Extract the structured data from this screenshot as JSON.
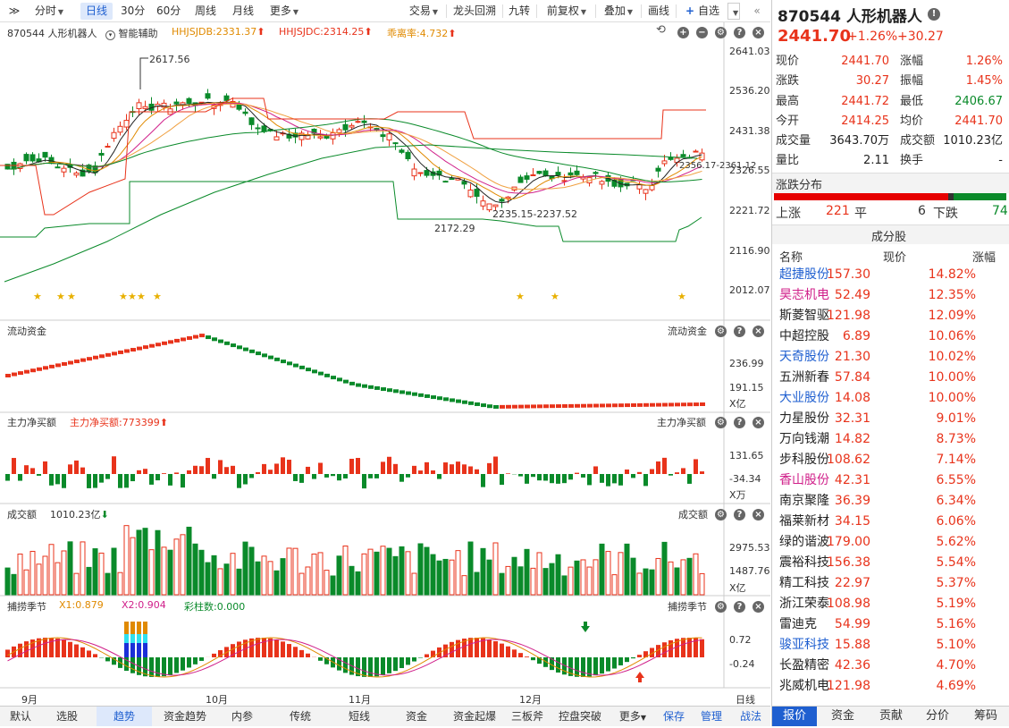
{
  "toolbar": {
    "expand": "≫",
    "items": [
      "分时",
      "日线",
      "30分",
      "60分",
      "周线",
      "月线",
      "更多"
    ],
    "right": [
      "交易",
      "龙头回溯",
      "九转",
      "前复权",
      "叠加",
      "画线",
      "自选"
    ]
  },
  "chart": {
    "title": "870544 人形机器人",
    "assist": "智能辅助",
    "ind1": "HHJSJDB:2331.37",
    "ind2": "HHJSJDC:2314.25",
    "ind3": "乖离率:4.732",
    "price_axis": [
      "2641.03",
      "2536.20",
      "2431.38",
      "2326.55",
      "2221.72",
      "2116.90",
      "2012.07"
    ],
    "ann_high": "2617.56",
    "ann_low": "2172.29",
    "ann_range": "2235.15-2237.52",
    "ann_right": "2356.17-2361.12",
    "flow_title": "流动资金",
    "flow_axis": [
      "236.99",
      "191.15"
    ],
    "flow_unit": "X亿",
    "mf_title": "主力净买额",
    "mf_val": "主力净买额:773399",
    "mf_axis": [
      "131.65",
      "-34.34"
    ],
    "mf_unit": "X万",
    "vol_title": "成交额",
    "vol_val": "1010.23亿",
    "vol_axis": [
      "2975.53",
      "1487.76"
    ],
    "vol_unit": "X亿",
    "cap_title": "捕捞季节",
    "cap_x1": "X1:0.879",
    "cap_x2": "X2:0.904",
    "cap_bar": "彩柱数:0.000",
    "cap_axis": [
      "0.72",
      "-0.24"
    ],
    "months": [
      "9月",
      "10月",
      "11月",
      "12月"
    ],
    "period": "日线"
  },
  "bottom_tabs": [
    "默认",
    "选股",
    "趋势",
    "资金趋势",
    "内参",
    "传统",
    "短线",
    "资金",
    "资金起爆",
    "三板斧",
    "控盘突破",
    "更多",
    "保存",
    "管理",
    "战法"
  ],
  "quote": {
    "name": "870544 人形机器人",
    "price": "2441.70",
    "pct": "+1.26%",
    "chg": "+30.27",
    "rows": [
      [
        "现价",
        "2441.70",
        "涨幅",
        "1.26%"
      ],
      [
        "涨跌",
        "30.27",
        "振幅",
        "1.45%"
      ],
      [
        "最高",
        "2441.72",
        "最低",
        "2406.67"
      ],
      [
        "今开",
        "2414.25",
        "均价",
        "2441.70"
      ],
      [
        "成交量",
        "3643.70万",
        "成交额",
        "1010.23亿"
      ],
      [
        "量比",
        "2.11",
        "换手",
        "-"
      ]
    ],
    "dist_title": "涨跌分布",
    "up_label": "上涨",
    "up": "221",
    "flat_label": "平",
    "flat": "6",
    "down_label": "下跌",
    "down": "74",
    "comp_title": "成分股",
    "headers": [
      "名称",
      "现价",
      "涨幅"
    ],
    "stocks": [
      {
        "n": "超捷股份",
        "p": "157.30",
        "r": "14.82%",
        "c": "#1f5fd0"
      },
      {
        "n": "昊志机电",
        "p": "52.49",
        "r": "12.35%",
        "c": "#d0208a"
      },
      {
        "n": "斯菱智驱",
        "p": "121.98",
        "r": "12.09%",
        "c": "#222"
      },
      {
        "n": "中超控股",
        "p": "6.89",
        "r": "10.06%",
        "c": "#222"
      },
      {
        "n": "天奇股份",
        "p": "21.30",
        "r": "10.02%",
        "c": "#1f5fd0"
      },
      {
        "n": "五洲新春",
        "p": "57.84",
        "r": "10.00%",
        "c": "#222"
      },
      {
        "n": "大业股份",
        "p": "14.08",
        "r": "10.00%",
        "c": "#1f5fd0"
      },
      {
        "n": "力星股份",
        "p": "32.31",
        "r": "9.01%",
        "c": "#222"
      },
      {
        "n": "万向钱潮",
        "p": "14.82",
        "r": "8.73%",
        "c": "#222"
      },
      {
        "n": "步科股份",
        "p": "108.62",
        "r": "7.14%",
        "c": "#222"
      },
      {
        "n": "香山股份",
        "p": "42.31",
        "r": "6.55%",
        "c": "#d0208a"
      },
      {
        "n": "南京聚隆",
        "p": "36.39",
        "r": "6.34%",
        "c": "#222"
      },
      {
        "n": "福莱新材",
        "p": "34.15",
        "r": "6.06%",
        "c": "#222"
      },
      {
        "n": "绿的谐波",
        "p": "179.00",
        "r": "5.62%",
        "c": "#222"
      },
      {
        "n": "震裕科技",
        "p": "156.38",
        "r": "5.54%",
        "c": "#222"
      },
      {
        "n": "精工科技",
        "p": "22.97",
        "r": "5.37%",
        "c": "#222"
      },
      {
        "n": "浙江荣泰",
        "p": "108.98",
        "r": "5.19%",
        "c": "#222"
      },
      {
        "n": "雷迪克",
        "p": "54.99",
        "r": "5.16%",
        "c": "#222"
      },
      {
        "n": "骏亚科技",
        "p": "15.88",
        "r": "5.10%",
        "c": "#1f5fd0"
      },
      {
        "n": "长盈精密",
        "p": "42.36",
        "r": "4.70%",
        "c": "#222"
      },
      {
        "n": "兆威机电",
        "p": "121.98",
        "r": "4.69%",
        "c": "#222"
      }
    ]
  },
  "right_tabs": [
    "报价",
    "资金",
    "贡献",
    "分价",
    "筹码"
  ]
}
